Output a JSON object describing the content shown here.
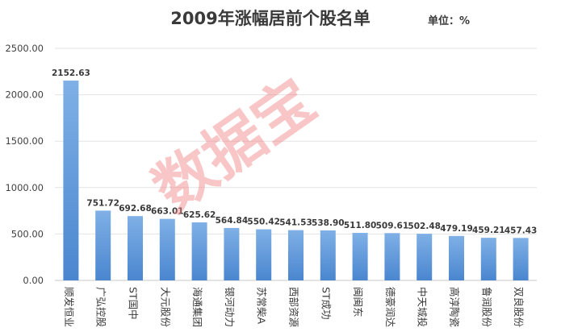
{
  "chart_data": {
    "type": "bar",
    "title": "2009年涨幅居前个股名单",
    "unit_label": "单位：%",
    "watermark": "数据宝",
    "categories": [
      "顺发恒业",
      "广弘控股",
      "ST国中",
      "大元股份",
      "海通集团",
      "银河动力",
      "苏常柴A",
      "西部资源",
      "ST成功",
      "闽闽东",
      "德豪润达",
      "中天城投",
      "高淳陶瓷",
      "鲁润股份",
      "双良股份"
    ],
    "values": [
      2152.63,
      751.72,
      692.68,
      663.01,
      625.62,
      564.84,
      550.42,
      541.53,
      538.9,
      511.8,
      509.61,
      502.48,
      479.19,
      459.21,
      457.43
    ],
    "value_labels": [
      "2152.63",
      "751.72",
      "692.68",
      "663.01",
      "625.62",
      "564.84",
      "550.42",
      "541.53",
      "538.90",
      "511.80",
      "509.61",
      "502.48",
      "479.19",
      "459.21",
      "457.43"
    ],
    "yticks": [
      "0.00",
      "500.00",
      "1000.00",
      "1500.00",
      "2000.00",
      "2500.00"
    ],
    "ylim": [
      0,
      2500
    ],
    "grid": true,
    "bar_color_top": "#7fb0e6",
    "bar_color_bottom": "#4a86cf"
  }
}
